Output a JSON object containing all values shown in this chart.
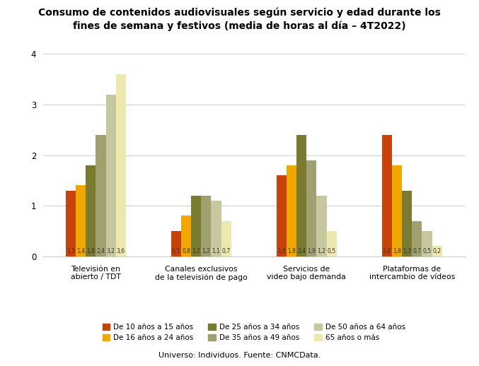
{
  "title": "Consumo de contenidos audiovisuales según servicio y edad durante los\nfines de semana y festivos (media de horas al día – 4T2022)",
  "categories": [
    "Televisión en\nabierto / TDT",
    "Canales exclusivos\nde la televisión de pago",
    "Servicios de\nvideo bajo demanda",
    "Plataformas de\nintercambio de vídeos"
  ],
  "series": [
    {
      "label": "De 10 años a 15 años",
      "color": "#C8430C",
      "values": [
        1.3,
        0.5,
        1.6,
        2.4
      ]
    },
    {
      "label": "De 16 años a 24 años",
      "color": "#F0A800",
      "values": [
        1.4,
        0.8,
        1.8,
        1.8
      ]
    },
    {
      "label": "De 25 años a 34 años",
      "color": "#7A7A30",
      "values": [
        1.8,
        1.2,
        2.4,
        1.3
      ]
    },
    {
      "label": "De 35 años a 49 años",
      "color": "#A0A070",
      "values": [
        2.4,
        1.2,
        1.9,
        0.7
      ]
    },
    {
      "label": "De 50 años a 64 años",
      "color": "#C8C8A0",
      "values": [
        3.2,
        1.1,
        1.2,
        0.5
      ]
    },
    {
      "label": "65 años o más",
      "color": "#EDE8B0",
      "values": [
        3.6,
        0.7,
        0.5,
        0.2
      ]
    }
  ],
  "ylim": [
    0,
    4.2
  ],
  "yticks": [
    0,
    1,
    2,
    3,
    4
  ],
  "footer": "Universo: Individuos. Fuente: CNMCData.",
  "background_color": "#FFFFFF",
  "grid_color": "#CCCCCC",
  "bar_width": 0.095,
  "group_width": 0.72
}
